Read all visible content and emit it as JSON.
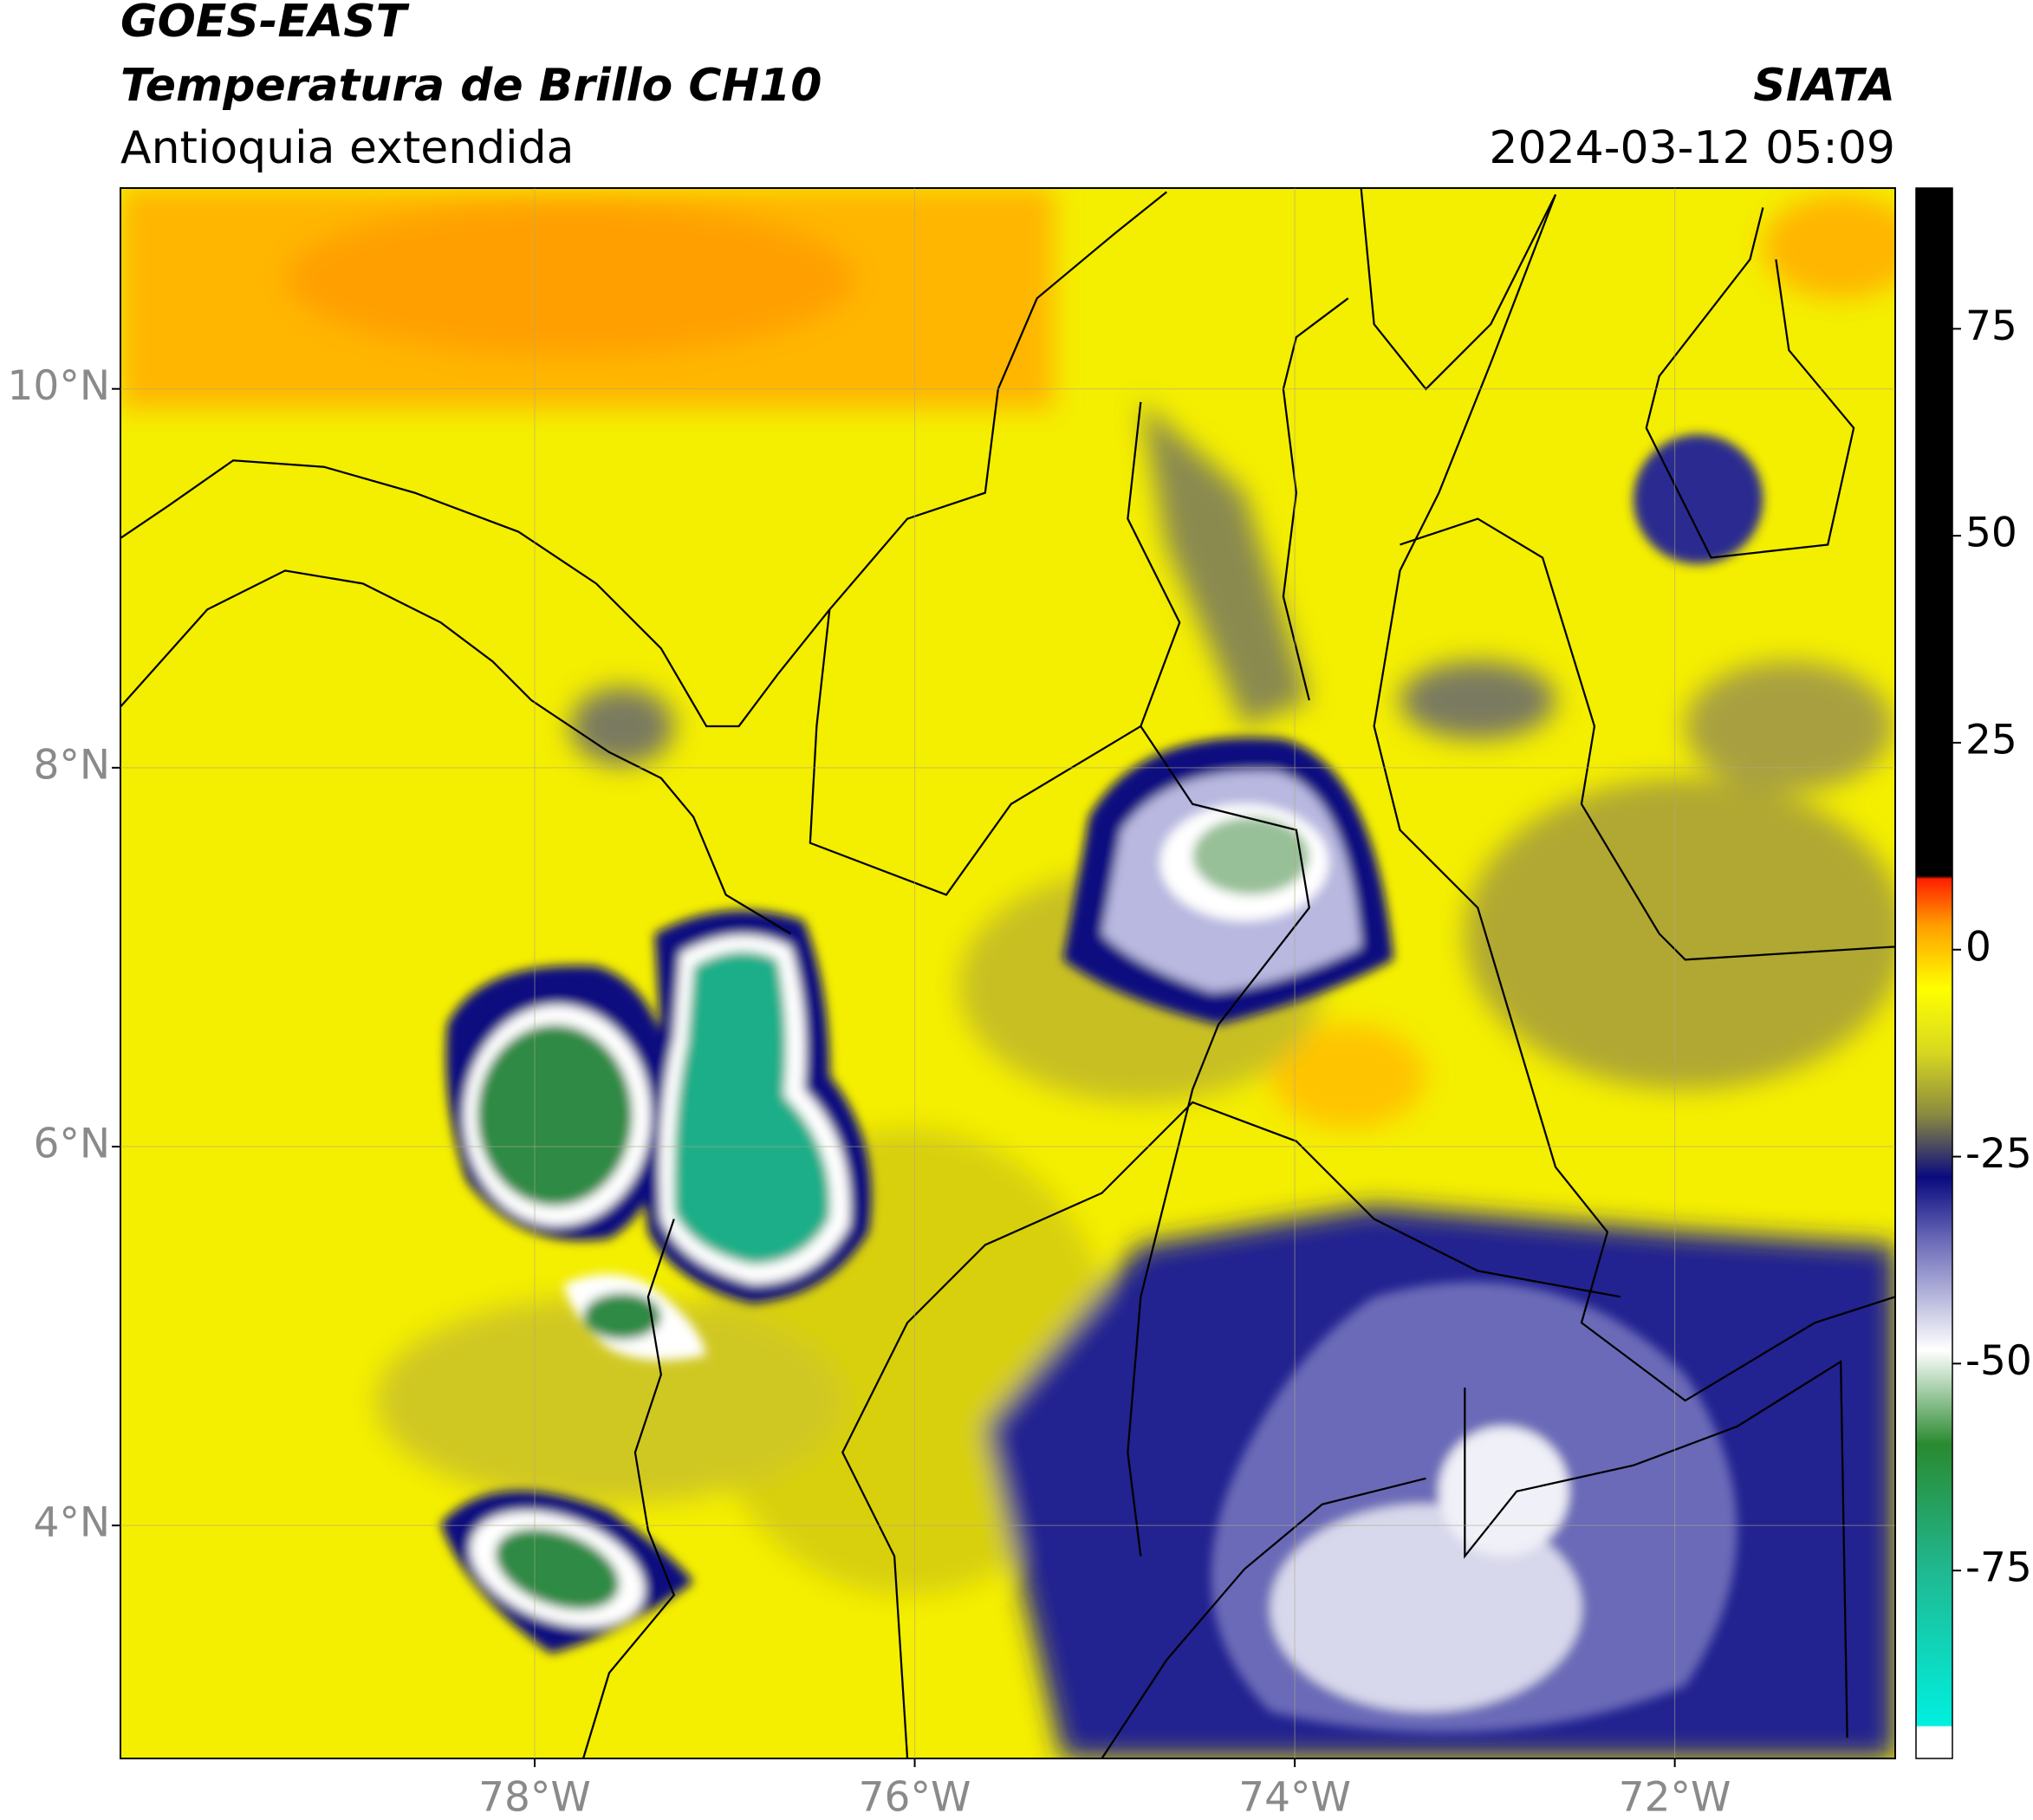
{
  "header": {
    "title": "GOES-EAST",
    "subtitle": "Temperatura de Brillo CH10",
    "region": "Antioquia extendida",
    "source": "SIATA",
    "datetime": "2024-03-12 05:09"
  },
  "map": {
    "xlim": [
      -80.18,
      -70.84
    ],
    "ylim": [
      2.77,
      11.06
    ],
    "xticks": [
      {
        "value": -78,
        "label": "78°W"
      },
      {
        "value": -76,
        "label": "76°W"
      },
      {
        "value": -74,
        "label": "74°W"
      },
      {
        "value": -72,
        "label": "72°W"
      }
    ],
    "yticks": [
      {
        "value": 4,
        "label": "4°N"
      },
      {
        "value": 6,
        "label": "6°N"
      },
      {
        "value": 8,
        "label": "8°N"
      },
      {
        "value": 10,
        "label": "10°N"
      }
    ]
  },
  "colorbar": {
    "lim": [
      -97.7,
      92
    ],
    "ticks": [
      -75,
      -50,
      -25,
      0,
      25,
      50,
      75
    ]
  }
}
